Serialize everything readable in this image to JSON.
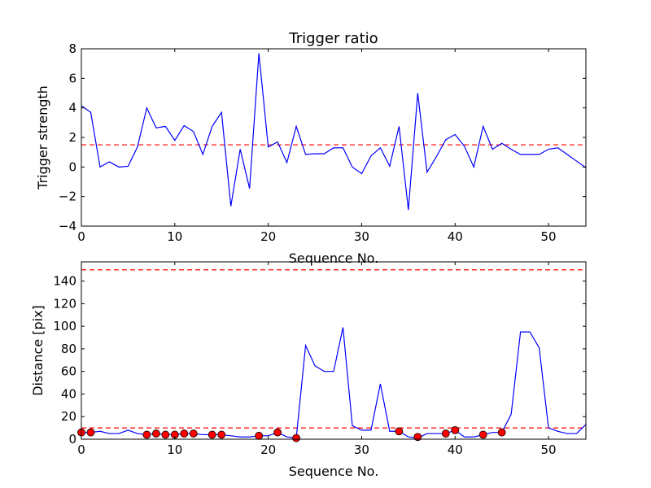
{
  "chart_data": [
    {
      "type": "line",
      "title": "Trigger ratio",
      "xlabel": "Sequence No.",
      "ylabel": "Trigger strength",
      "xlim": [
        0,
        54
      ],
      "ylim": [
        -4,
        8
      ],
      "xticks": [
        0,
        10,
        20,
        30,
        40,
        50
      ],
      "yticks": [
        -4,
        -2,
        0,
        2,
        4,
        6,
        8
      ],
      "tick_labels_y": [
        "−4",
        "−2",
        "0",
        "2",
        "4",
        "6",
        "8"
      ],
      "line_color": "#0000ff",
      "threshold_color": "#ff0000",
      "thresholds": [
        1.5
      ],
      "x": [
        0,
        1,
        2,
        3,
        4,
        5,
        6,
        7,
        8,
        9,
        10,
        11,
        12,
        13,
        14,
        15,
        16,
        17,
        18,
        19,
        20,
        21,
        22,
        23,
        24,
        25,
        26,
        27,
        28,
        29,
        30,
        31,
        32,
        33,
        34,
        35,
        36,
        37,
        38,
        39,
        40,
        41,
        42,
        43,
        44,
        45,
        46,
        47,
        48,
        49,
        50,
        51,
        52,
        53,
        54
      ],
      "series": [
        {
          "values": [
            4.15,
            3.7,
            0.0,
            0.35,
            0.0,
            0.05,
            1.35,
            4.0,
            2.65,
            2.75,
            1.8,
            2.8,
            2.4,
            0.85,
            2.75,
            3.7,
            -2.65,
            1.2,
            -1.45,
            7.7,
            1.35,
            1.7,
            0.3,
            2.75,
            0.85,
            0.9,
            0.9,
            1.3,
            1.3,
            0.0,
            -0.45,
            0.75,
            1.3,
            0.05,
            2.75,
            -2.9,
            5.0,
            -0.35,
            0.7,
            1.85,
            2.2,
            1.4,
            0.0,
            2.75,
            1.2,
            1.6,
            1.2,
            0.85,
            0.85,
            0.85,
            1.2,
            1.3,
            0.85,
            0.4,
            -0.05
          ]
        }
      ]
    },
    {
      "type": "line",
      "title": "",
      "xlabel": "Sequence No.",
      "ylabel": "Distance [pix]",
      "xlim": [
        0,
        54
      ],
      "ylim": [
        0,
        157
      ],
      "xticks": [
        0,
        10,
        20,
        30,
        40,
        50
      ],
      "yticks": [
        0,
        20,
        40,
        60,
        80,
        100,
        120,
        140
      ],
      "tick_labels_y": [
        "0",
        "20",
        "40",
        "60",
        "80",
        "100",
        "120",
        "140"
      ],
      "line_color": "#0000ff",
      "threshold_color": "#ff0000",
      "marker_color": "#ff0000",
      "thresholds": [
        10,
        150
      ],
      "x": [
        0,
        1,
        2,
        3,
        4,
        5,
        6,
        7,
        8,
        9,
        10,
        11,
        12,
        13,
        14,
        15,
        16,
        17,
        18,
        19,
        20,
        21,
        22,
        23,
        24,
        25,
        26,
        27,
        28,
        29,
        30,
        31,
        32,
        33,
        34,
        35,
        36,
        37,
        38,
        39,
        40,
        41,
        42,
        43,
        44,
        45,
        46,
        47,
        48,
        49,
        50,
        51,
        52,
        53,
        54
      ],
      "series": [
        {
          "values": [
            6,
            6,
            7,
            5,
            5,
            8,
            5,
            4,
            5,
            4,
            4,
            5,
            5,
            4,
            4,
            4,
            3,
            2,
            2,
            3,
            3,
            6,
            2,
            1,
            83,
            65,
            60,
            60,
            99,
            12,
            8,
            8,
            49,
            7,
            7,
            2,
            1,
            5,
            5,
            5,
            8,
            2,
            2,
            4,
            6,
            6,
            22,
            95,
            95,
            81,
            10,
            7,
            5,
            5,
            13
          ]
        }
      ],
      "markers": {
        "x": [
          0,
          1,
          7,
          8,
          9,
          10,
          11,
          12,
          14,
          15,
          19,
          21,
          23,
          34,
          36,
          39,
          40,
          43,
          45
        ],
        "y": [
          6,
          6,
          4,
          5,
          4,
          4,
          5,
          5,
          4,
          4,
          3,
          6,
          1,
          7,
          2,
          5,
          8,
          4,
          6
        ]
      }
    }
  ]
}
